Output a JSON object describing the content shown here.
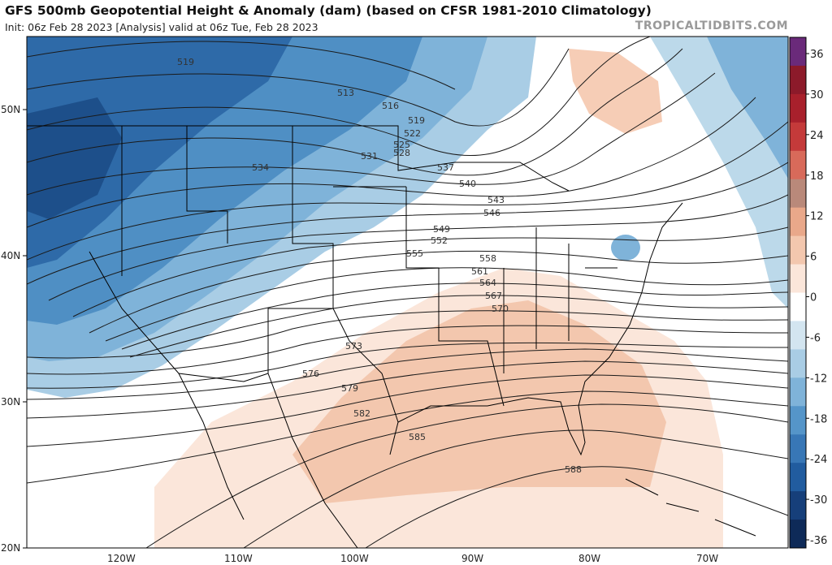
{
  "header": {
    "title": "GFS 500mb Geopotential Height & Anomaly (dam) (based on CFSR 1981-2010 Climatology)",
    "subtitle": "Init: 06z Feb 28 2023   [Analysis]   valid at 06z Tue, Feb 28 2023",
    "brand": "TROPICALTIDBITS.COM"
  },
  "map": {
    "lat_labels": [
      "50N",
      "40N",
      "30N",
      "20N"
    ],
    "lon_labels": [
      "120W",
      "110W",
      "100W",
      "90W",
      "80W",
      "70W"
    ],
    "contour_labels": [
      "519",
      "513",
      "516",
      "519",
      "522",
      "525",
      "528",
      "531",
      "534",
      "537",
      "540",
      "543",
      "546",
      "549",
      "552",
      "555",
      "558",
      "561",
      "564",
      "567",
      "570",
      "573",
      "576",
      "579",
      "582",
      "585",
      "588"
    ],
    "colors": {
      "deep_negative": "#1f5a9e",
      "negative": "#5b9bcf",
      "weak_negative": "#bcd9ea",
      "neutral": "#ffffff",
      "weak_positive": "#f9dccc",
      "positive": "#f2b99c",
      "contour": "#1a1a1a",
      "borders": "#000000"
    }
  },
  "colorbar": {
    "ticks": [
      "36",
      "30",
      "24",
      "18",
      "12",
      "6",
      "0",
      "-6",
      "-12",
      "-18",
      "-24",
      "-30",
      "-36"
    ],
    "colors": [
      "#6a2a7a",
      "#8c1a2a",
      "#a8202c",
      "#c43a3a",
      "#d86a5a",
      "#b9897a",
      "#e9a88a",
      "#f3c7ae",
      "#fbe6da",
      "#ffffff",
      "#d3e5f0",
      "#a9cde5",
      "#7fb3d9",
      "#5595c9",
      "#3877b6",
      "#215c9f",
      "#163f7a",
      "#0e2a58"
    ]
  }
}
